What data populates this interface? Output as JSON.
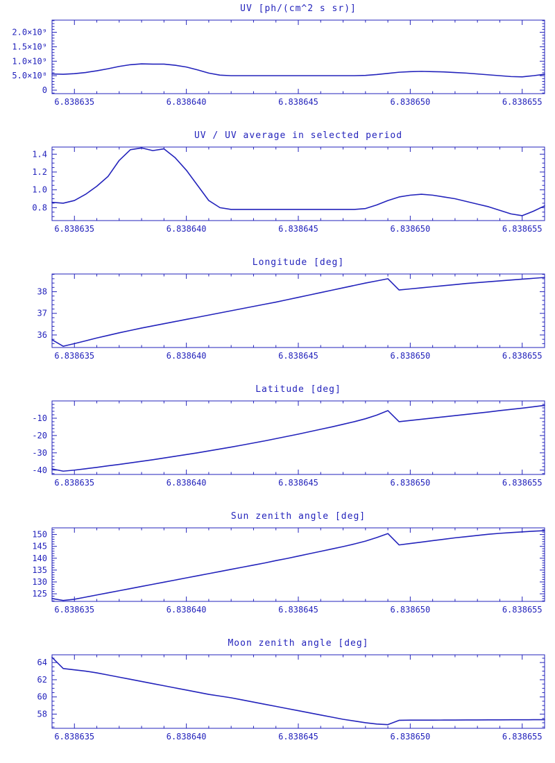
{
  "page": {
    "background": "#ffffff",
    "accent_color": "#2222bb"
  },
  "chart_data": [
    {
      "type": "line",
      "title": "UV [ph/(cm^2 s sr)]",
      "xlabel": "",
      "ylabel": "",
      "line_color": "#2222bb",
      "grid": false,
      "legend": null,
      "x_start": 6.838634,
      "x_step": 5e-07,
      "xlim": [
        6.838634,
        6.838656
      ],
      "ylim": [
        -120000000.0,
        2420000000.0
      ],
      "xticks": [
        6.838635,
        6.83864,
        6.838645,
        6.83865,
        6.838655
      ],
      "xtick_labels": [
        "6.838635",
        "6.838640",
        "6.838645",
        "6.838650",
        "6.838655"
      ],
      "yticks": [
        0,
        500000000.0,
        1000000000.0,
        1500000000.0,
        2000000000.0
      ],
      "ytick_labels": [
        "0",
        "5.0×10⁸",
        "1.0×10⁹",
        "1.5×10⁹",
        "2.0×10⁹"
      ],
      "x_minor": 1e-06,
      "y_minor": 100000000.0,
      "y": [
        560000000.0,
        550000000.0,
        570000000.0,
        610000000.0,
        670000000.0,
        740000000.0,
        820000000.0,
        880000000.0,
        910000000.0,
        900000000.0,
        900000000.0,
        860000000.0,
        800000000.0,
        700000000.0,
        590000000.0,
        520000000.0,
        500000000.0,
        500000000.0,
        500000000.0,
        500000000.0,
        500000000.0,
        500000000.0,
        500000000.0,
        500000000.0,
        500000000.0,
        500000000.0,
        500000000.0,
        500000000.0,
        510000000.0,
        540000000.0,
        580000000.0,
        620000000.0,
        640000000.0,
        650000000.0,
        640000000.0,
        630000000.0,
        610000000.0,
        590000000.0,
        560000000.0,
        530000000.0,
        500000000.0,
        470000000.0,
        460000000.0,
        500000000.0,
        550000000.0
      ]
    },
    {
      "type": "line",
      "title": "UV / UV average in selected period",
      "xlabel": "",
      "ylabel": "",
      "line_color": "#2222bb",
      "grid": false,
      "legend": null,
      "x_start": 6.838634,
      "x_step": 5e-07,
      "xlim": [
        6.838634,
        6.838656
      ],
      "ylim": [
        0.655,
        1.48
      ],
      "xticks": [
        6.838635,
        6.83864,
        6.838645,
        6.83865,
        6.838655
      ],
      "xtick_labels": [
        "6.838635",
        "6.838640",
        "6.838645",
        "6.838650",
        "6.838655"
      ],
      "yticks": [
        0.8,
        1.0,
        1.2,
        1.4
      ],
      "ytick_labels": [
        "0.8",
        "1.0",
        "1.2",
        "1.4"
      ],
      "x_minor": 1e-06,
      "y_minor": 0.05,
      "y": [
        0.86,
        0.85,
        0.88,
        0.95,
        1.04,
        1.15,
        1.33,
        1.45,
        1.47,
        1.44,
        1.46,
        1.36,
        1.22,
        1.05,
        0.88,
        0.8,
        0.78,
        0.78,
        0.78,
        0.78,
        0.78,
        0.78,
        0.78,
        0.78,
        0.78,
        0.78,
        0.78,
        0.78,
        0.79,
        0.83,
        0.88,
        0.92,
        0.94,
        0.95,
        0.94,
        0.92,
        0.9,
        0.87,
        0.84,
        0.81,
        0.77,
        0.73,
        0.71,
        0.76,
        0.82
      ]
    },
    {
      "type": "line",
      "title": "Longitude [deg]",
      "xlabel": "",
      "ylabel": "",
      "line_color": "#2222bb",
      "grid": false,
      "legend": null,
      "x_start": 6.838634,
      "x_step": 5e-07,
      "xlim": [
        6.838634,
        6.838656
      ],
      "ylim": [
        35.42,
        38.82
      ],
      "xticks": [
        6.838635,
        6.83864,
        6.838645,
        6.83865,
        6.838655
      ],
      "xtick_labels": [
        "6.838635",
        "6.838640",
        "6.838645",
        "6.838650",
        "6.838655"
      ],
      "yticks": [
        36,
        37,
        38
      ],
      "ytick_labels": [
        "36",
        "37",
        "38"
      ],
      "x_minor": 1e-06,
      "y_minor": 0.2,
      "y": [
        35.78,
        35.48,
        35.6,
        35.73,
        35.86,
        35.98,
        36.1,
        36.21,
        36.32,
        36.42,
        36.52,
        36.62,
        36.72,
        36.82,
        36.92,
        37.02,
        37.12,
        37.22,
        37.32,
        37.42,
        37.52,
        37.63,
        37.74,
        37.85,
        37.96,
        38.07,
        38.18,
        38.29,
        38.4,
        38.5,
        38.6,
        38.08,
        38.13,
        38.18,
        38.23,
        38.28,
        38.33,
        38.38,
        38.42,
        38.46,
        38.5,
        38.54,
        38.58,
        38.62,
        38.66
      ]
    },
    {
      "type": "line",
      "title": "Latitude [deg]",
      "xlabel": "",
      "ylabel": "",
      "line_color": "#2222bb",
      "grid": false,
      "legend": null,
      "x_start": 6.838634,
      "x_step": 5e-07,
      "xlim": [
        6.838634,
        6.838656
      ],
      "ylim": [
        -42.5,
        0
      ],
      "xticks": [
        6.838635,
        6.83864,
        6.838645,
        6.83865,
        6.838655
      ],
      "xtick_labels": [
        "6.838635",
        "6.838640",
        "6.838645",
        "6.838650",
        "6.838655"
      ],
      "yticks": [
        -40,
        -30,
        -20,
        -10
      ],
      "ytick_labels": [
        "-40",
        "-30",
        "-20",
        "-10"
      ],
      "x_minor": 1e-06,
      "y_minor": 2,
      "y": [
        -39.3,
        -40.6,
        -40.0,
        -39.2,
        -38.4,
        -37.5,
        -36.7,
        -35.8,
        -34.9,
        -34.0,
        -33.0,
        -32.0,
        -31.0,
        -30.0,
        -28.9,
        -27.8,
        -26.7,
        -25.5,
        -24.3,
        -23.1,
        -21.8,
        -20.5,
        -19.2,
        -17.8,
        -16.4,
        -15.0,
        -13.5,
        -12.0,
        -10.3,
        -8.2,
        -5.6,
        -12.0,
        -11.3,
        -10.6,
        -9.9,
        -9.2,
        -8.5,
        -7.8,
        -7.1,
        -6.4,
        -5.6,
        -4.9,
        -4.2,
        -3.4,
        -2.6
      ]
    },
    {
      "type": "line",
      "title": "Sun zenith angle [deg]",
      "xlabel": "",
      "ylabel": "",
      "line_color": "#2222bb",
      "grid": false,
      "legend": null,
      "x_start": 6.838634,
      "x_step": 5e-07,
      "xlim": [
        6.838634,
        6.838656
      ],
      "ylim": [
        121.8,
        152.8
      ],
      "xticks": [
        6.838635,
        6.83864,
        6.838645,
        6.83865,
        6.838655
      ],
      "xtick_labels": [
        "6.838635",
        "6.838640",
        "6.838645",
        "6.838650",
        "6.838655"
      ],
      "yticks": [
        125,
        130,
        135,
        140,
        145,
        150
      ],
      "ytick_labels": [
        "125",
        "130",
        "135",
        "140",
        "145",
        "150"
      ],
      "x_minor": 1e-06,
      "y_minor": 1,
      "y": [
        123.0,
        122.2,
        122.7,
        123.6,
        124.5,
        125.4,
        126.3,
        127.2,
        128.1,
        129.0,
        129.9,
        130.8,
        131.7,
        132.6,
        133.5,
        134.4,
        135.3,
        136.2,
        137.1,
        138.0,
        139.0,
        139.9,
        140.9,
        141.9,
        142.9,
        143.9,
        144.9,
        146.0,
        147.2,
        148.7,
        150.4,
        145.6,
        146.2,
        146.8,
        147.4,
        148.0,
        148.6,
        149.1,
        149.6,
        150.1,
        150.5,
        150.8,
        151.1,
        151.4,
        151.6
      ]
    },
    {
      "type": "line",
      "title": "Moon zenith angle [deg]",
      "xlabel": "",
      "ylabel": "",
      "line_color": "#2222bb",
      "grid": false,
      "legend": null,
      "x_start": 6.838634,
      "x_step": 5e-07,
      "xlim": [
        6.838634,
        6.838656
      ],
      "ylim": [
        56.35,
        64.9
      ],
      "xticks": [
        6.838635,
        6.83864,
        6.838645,
        6.83865,
        6.838655
      ],
      "xtick_labels": [
        "6.838635",
        "6.838640",
        "6.838645",
        "6.838650",
        "6.838655"
      ],
      "yticks": [
        58,
        60,
        62,
        64
      ],
      "ytick_labels": [
        "58",
        "60",
        "62",
        "64"
      ],
      "x_minor": 1e-06,
      "y_minor": 0.5,
      "y": [
        64.6,
        63.3,
        63.15,
        63.0,
        62.8,
        62.55,
        62.3,
        62.05,
        61.8,
        61.55,
        61.3,
        61.05,
        60.8,
        60.55,
        60.3,
        60.1,
        59.9,
        59.65,
        59.4,
        59.15,
        58.9,
        58.65,
        58.4,
        58.15,
        57.9,
        57.65,
        57.4,
        57.2,
        57.0,
        56.85,
        56.78,
        57.28,
        57.3,
        57.3,
        57.3,
        57.31,
        57.31,
        57.32,
        57.32,
        57.33,
        57.33,
        57.34,
        57.34,
        57.35,
        57.35
      ]
    }
  ]
}
